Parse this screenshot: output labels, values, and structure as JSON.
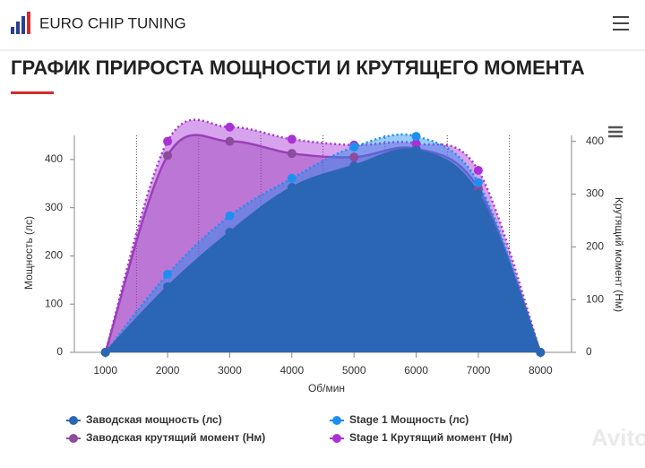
{
  "header": {
    "brand": "EURO CHIP TUNING"
  },
  "page_title": "ГРАФИК ПРИРОСТА МОЩНОСТИ И КРУТЯЩЕГО МОМЕНТА",
  "watermark": "Avito",
  "chart_data": {
    "type": "area-spline",
    "x_label": "Об/мин",
    "y_label": "Мощность (лс)",
    "y2_label": "Крутящий момент (Нм)",
    "x": [
      1000,
      2000,
      3000,
      4000,
      5000,
      6000,
      7000,
      8000
    ],
    "xlim": [
      500,
      8500
    ],
    "xticks": [
      1000,
      2000,
      3000,
      4000,
      5000,
      6000,
      7000,
      8000
    ],
    "ylim": [
      0,
      450
    ],
    "yticks": [
      0,
      100,
      200,
      300,
      400
    ],
    "y2lim": [
      0,
      430
    ],
    "y2ticks": [
      0,
      100,
      200,
      300,
      400
    ],
    "series": [
      {
        "name": "Заводская крутящий момент (Нм)",
        "color": "#8d4b9e",
        "axis": "y2",
        "line_style": "solid",
        "values": [
          0,
          373,
          400,
          377,
          370,
          386,
          311,
          0
        ]
      },
      {
        "name": "Stage 1 Крутящий момент (Нм)",
        "color": "#a932d6",
        "axis": "y2",
        "line_style": "dotted",
        "values": [
          0,
          400,
          427,
          404,
          393,
          396,
          345,
          0
        ]
      },
      {
        "name": "Stage 1 Мощность (лс)",
        "color": "#1e8ff0",
        "axis": "y",
        "line_style": "dotted",
        "values": [
          0,
          162,
          283,
          361,
          426,
          448,
          352,
          0
        ]
      },
      {
        "name": "Заводская мощность (лс)",
        "color": "#2a66b3",
        "axis": "y",
        "line_style": "solid",
        "values": [
          0,
          136,
          249,
          342,
          387,
          419,
          329,
          0
        ]
      }
    ],
    "legend_order": [
      3,
      2,
      0,
      1
    ]
  }
}
